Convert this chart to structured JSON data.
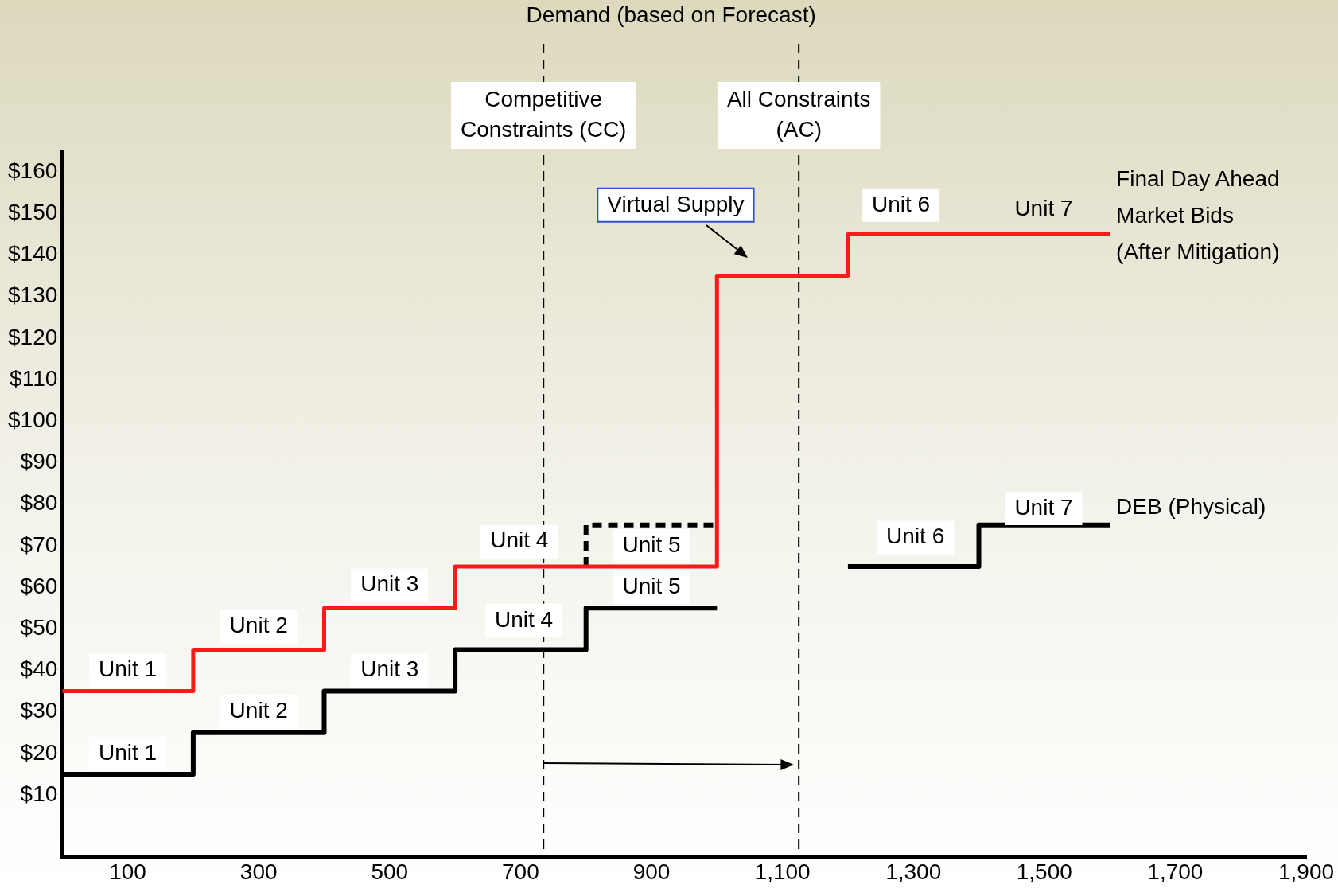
{
  "chart_data": {
    "type": "step",
    "series": [
      {
        "name": "Final Day Ahead Market Bids (After Mitigation)",
        "color": "#ff1a1a",
        "x": [
          0,
          200,
          400,
          600,
          1000,
          1200,
          1600
        ],
        "values": [
          35,
          45,
          55,
          65,
          135,
          145,
          145
        ]
      },
      {
        "name": "DEB (Physical)",
        "color": "#000000",
        "x": [
          0,
          200,
          400,
          600,
          800,
          1000,
          1100,
          1200,
          1400,
          1600
        ],
        "values": [
          15,
          25,
          35,
          45,
          55,
          55,
          null,
          65,
          75,
          75
        ]
      },
      {
        "color": "#000000",
        "line_style": "dashed",
        "x": [
          800,
          800,
          1000
        ],
        "values": [
          65,
          75,
          75
        ]
      }
    ],
    "xlim": [
      0,
      1900
    ],
    "xticks": [
      100,
      300,
      500,
      700,
      900,
      {
        "value": 1100,
        "label": "1,100"
      },
      {
        "value": 1300,
        "label": "1,300"
      },
      {
        "value": 1500,
        "label": "1,500"
      },
      {
        "value": 1700,
        "label": "1,700"
      },
      {
        "value": 1900,
        "label": "1,900"
      }
    ],
    "ylim": [
      -5,
      165
    ],
    "yticks": [
      {
        "value": 10,
        "label": "$10"
      },
      {
        "value": 20,
        "label": "$20"
      },
      {
        "value": 30,
        "label": "$30"
      },
      {
        "value": 40,
        "label": "$40"
      },
      {
        "value": 50,
        "label": "$50"
      },
      {
        "value": 60,
        "label": "$60"
      },
      {
        "value": 70,
        "label": "$70"
      },
      {
        "value": 80,
        "label": "$80"
      },
      {
        "value": 90,
        "label": "$90"
      },
      {
        "value": 100,
        "label": "$100"
      },
      {
        "value": 110,
        "label": "$110"
      },
      {
        "value": 120,
        "label": "$120"
      },
      {
        "value": 130,
        "label": "$130"
      },
      {
        "value": 140,
        "label": "$140"
      },
      {
        "value": 150,
        "label": "$150"
      },
      {
        "value": 160,
        "label": "$160"
      }
    ],
    "grid": false,
    "legend": false,
    "marker": "none",
    "ref_lines": [
      {
        "axis": "x",
        "value": 735,
        "label": "Competitive Constraints (CC)",
        "line_style": "dashed",
        "color": "#000000"
      },
      {
        "axis": "x",
        "value": 1125,
        "label": "All Constraints (AC)",
        "line_style": "dashed",
        "color": "#000000"
      }
    ],
    "annotations": [
      "Demand (based on Forecast)",
      "Virtual Supply",
      "Unit 1",
      "Unit 2",
      "Unit 3",
      "Unit 4",
      "Unit 5",
      "Unit 6",
      "Unit 7",
      "Unit 1",
      "Unit 2",
      "Unit 3",
      "Unit 4",
      "Unit 5",
      "Unit 6",
      "Unit 7"
    ]
  }
}
